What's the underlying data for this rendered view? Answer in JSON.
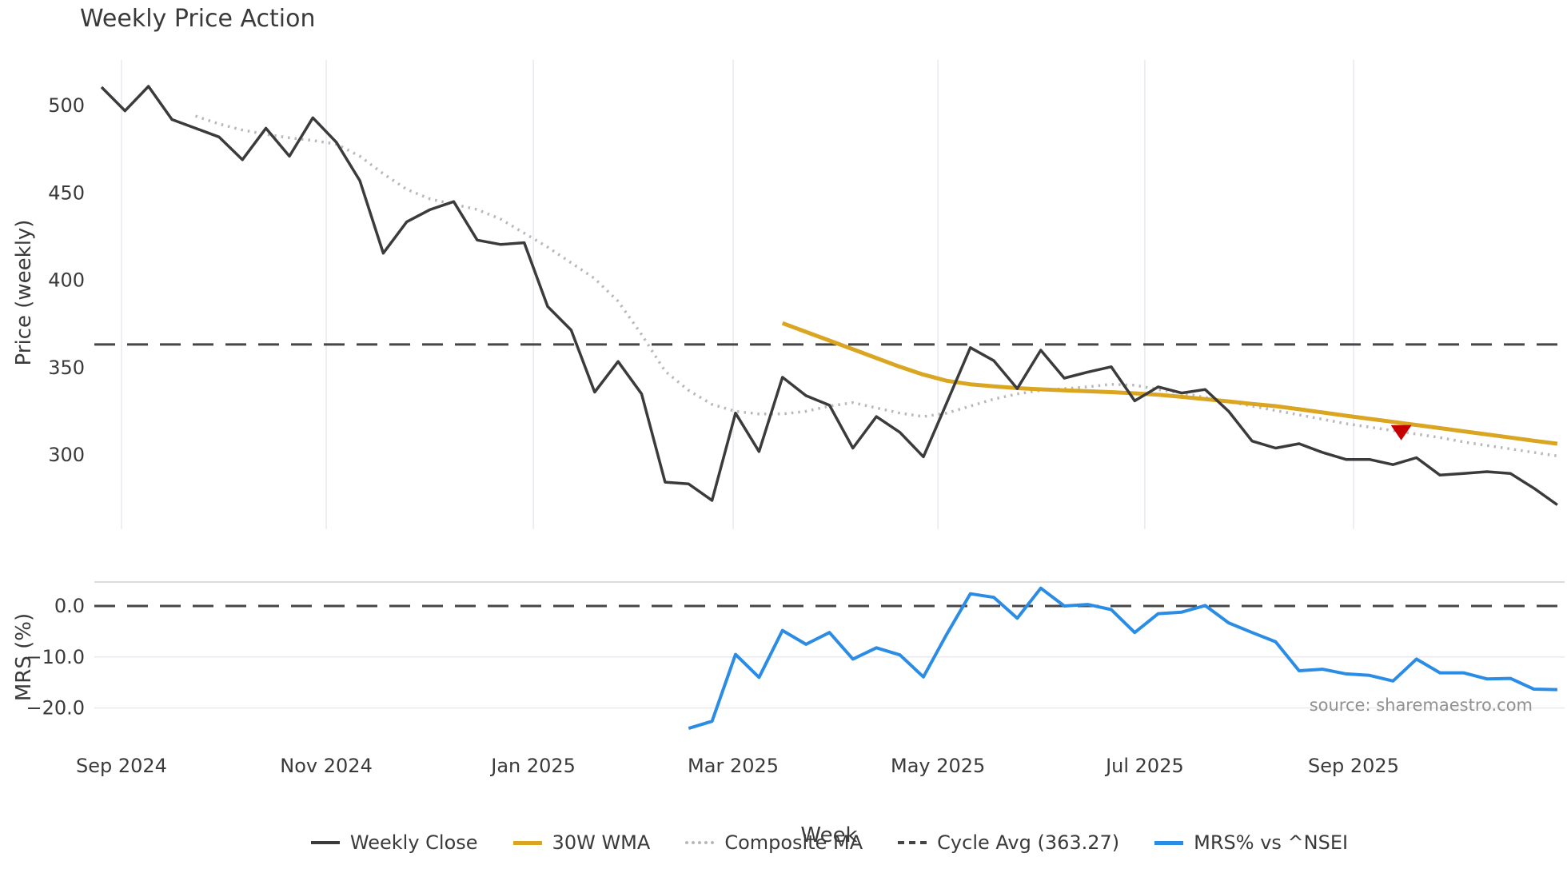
{
  "title": "Weekly Price Action",
  "source_text": "source: sharemaestro.com",
  "colors": {
    "weekly_close": "#3b3b3b",
    "wma_30w": "#DAA520",
    "composite_ma": "#b8b8b8",
    "cycle_avg": "#464646",
    "mrs_line": "#2b8ce6",
    "signal_marker": "#c40000",
    "gridline": "#e9ebf3",
    "panel_border": "#cfcfcf",
    "tick_text": "#3a3a3a",
    "source_text_color": "#919191"
  },
  "chart_data": {
    "type": "line",
    "xlabel": "Week",
    "x_unit": "week_index_from_2024-08-26",
    "x_ticks": {
      "positions": [
        0.85,
        9.57,
        18.39,
        26.9,
        35.62,
        44.43,
        53.32
      ],
      "labels": [
        "Sep 2024",
        "Nov 2024",
        "Jan 2025",
        "Mar 2025",
        "May 2025",
        "Jul 2025",
        "Sep 2025"
      ]
    },
    "grid": "vertical-only-top-panel",
    "legend_position": "bottom-center",
    "panels": [
      {
        "name": "price",
        "ylabel": "Price (weekly)",
        "ylim": [
          257,
          526
        ],
        "yticks": [
          {
            "value": 500,
            "label": "500"
          },
          {
            "value": 450,
            "label": "450"
          },
          {
            "value": 400,
            "label": "400"
          },
          {
            "value": 350,
            "label": "350"
          },
          {
            "value": 300,
            "label": "300"
          }
        ],
        "cycle_avg": {
          "label": "Cycle Avg (363.27)",
          "value": 363.27,
          "style": "dashed"
        },
        "series": [
          {
            "name": "Weekly Close",
            "style": "solid",
            "width": 3.5,
            "color_key": "weekly_close",
            "start_week": 0,
            "values": [
              510.5,
              497,
              511,
              492,
              487,
              482,
              469,
              487,
              471,
              493,
              479,
              457,
              415.5,
              433.5,
              440.5,
              445,
              423,
              420.5,
              421.5,
              385,
              371.5,
              336,
              353.5,
              335,
              284.5,
              283.5,
              274,
              324,
              302,
              344.5,
              334,
              328.5,
              304,
              322,
              313,
              299,
              330,
              361.5,
              354,
              338,
              360,
              344,
              347.5,
              350.5,
              331,
              339,
              335.5,
              337.5,
              325,
              308,
              304,
              306.5,
              301.5,
              297.5,
              297.5,
              294.5,
              298.5,
              288.5,
              289.5,
              290.5,
              289.5,
              281,
              271.5
            ]
          },
          {
            "name": "Composite MA",
            "style": "dotted",
            "width": 3.5,
            "color_key": "composite_ma",
            "start_week": 4,
            "values": [
              494,
              489.5,
              486,
              483.5,
              481.5,
              480,
              478,
              471,
              461,
              452,
              446.5,
              443.5,
              440.5,
              435,
              427,
              419,
              410,
              401,
              388,
              369,
              348,
              337,
              329,
              325,
              323.5,
              323.5,
              325,
              328,
              330,
              327,
              324,
              322,
              324,
              328,
              332,
              335,
              337,
              338,
              339,
              340.5,
              340,
              337.5,
              335.5,
              333,
              330.5,
              328,
              325.5,
              323,
              320.5,
              318,
              316,
              314,
              312,
              310,
              307.5,
              305.5,
              303.5,
              301.5,
              299.5
            ]
          },
          {
            "name": "30W WMA",
            "style": "solid",
            "width": 5,
            "color_key": "wma_30w",
            "start_week": 29,
            "values": [
              375.5,
              370.5,
              365.5,
              360.5,
              355.5,
              350.5,
              346,
              342.5,
              340.5,
              339.3,
              338.3,
              337.6,
              337,
              336.5,
              336,
              335.3,
              334.5,
              333.3,
              332,
              330.7,
              329.3,
              328,
              326.2,
              324.4,
              322.5,
              320.7,
              319,
              317.2,
              315.4,
              313.6,
              311.8,
              310,
              308.2,
              306.5
            ]
          }
        ],
        "markers": [
          {
            "name": "signal-triangle-down",
            "shape": "triangle-down",
            "week": 55.35,
            "value": 313,
            "color_key": "signal_marker"
          }
        ]
      },
      {
        "name": "mrs",
        "ylabel": "MRS (%)",
        "ylim": [
          -26.9,
          4.7
        ],
        "yticks": [
          {
            "value": 0,
            "label": "0.0"
          },
          {
            "value": -10,
            "label": "−10.0"
          },
          {
            "value": -20,
            "label": "−20.0"
          }
        ],
        "zero_line": {
          "value": 0.0,
          "style": "dashed"
        },
        "series": [
          {
            "name": "MRS% vs ^NSEI",
            "style": "solid",
            "width": 4,
            "color_key": "mrs_line",
            "start_week": 25,
            "values": [
              -24,
              -22.6,
              -9.5,
              -14,
              -4.8,
              -7.5,
              -5.2,
              -10.4,
              -8.2,
              -9.6,
              -13.9,
              -5.5,
              2.4,
              1.7,
              -2.4,
              3.5,
              0,
              0.3,
              -0.7,
              -5.2,
              -1.5,
              -1.2,
              0.1,
              -3.3,
              -5.2,
              -7,
              -12.7,
              -12.4,
              -13.3,
              -13.6,
              -14.7,
              -10.4,
              -13.1,
              -13.1,
              -14.3,
              -14.2,
              -16.3,
              -16.4
            ]
          }
        ]
      }
    ]
  },
  "legend": {
    "items": [
      {
        "label": "Weekly Close",
        "color_key": "weekly_close",
        "dash": "solid"
      },
      {
        "label": "30W WMA",
        "color_key": "wma_30w",
        "dash": "solid"
      },
      {
        "label": "Composite MA",
        "color_key": "composite_ma",
        "dash": "dotted"
      },
      {
        "label": "Cycle Avg (363.27)",
        "color_key": "cycle_avg",
        "dash": "dashed"
      },
      {
        "label": "MRS% vs ^NSEI",
        "color_key": "mrs_line",
        "dash": "solid"
      }
    ]
  }
}
